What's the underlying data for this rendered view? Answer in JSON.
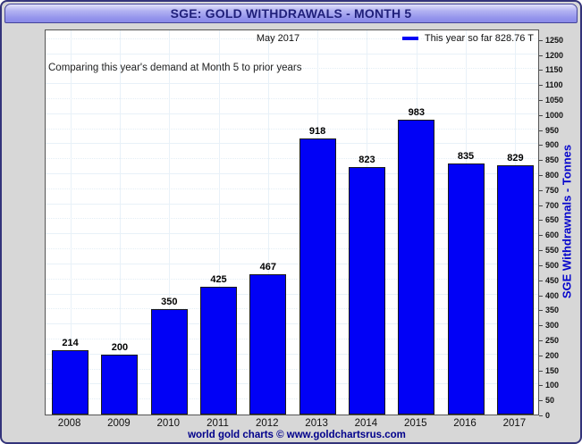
{
  "window": {
    "title": "SGE: GOLD WITHDRAWALS - MONTH 5",
    "footer": "world gold charts © www.goldchartsrus.com"
  },
  "chart": {
    "period_label": "May 2017",
    "annotation": "Comparing this year's demand at Month 5 to prior years",
    "legend_label": "This year so far 828.76 T",
    "y_axis_title": "SGE Withdrawnals - Tonnes"
  },
  "colors": {
    "bar_fill": "#0101f6",
    "bar_border": "#1a1a1a",
    "legend_swatch": "#0101f6",
    "axis_title": "#0404cc",
    "footer_text": "#00008b",
    "title_text": "#20207a",
    "title_bar_top": "#b3b3f2",
    "title_bar_bottom": "#8a8ae8",
    "window_bg": "#d7d7d7",
    "window_border": "#33337a"
  },
  "chart_data": {
    "type": "bar",
    "title": "SGE: GOLD WITHDRAWALS - MONTH 5",
    "categories": [
      "2008",
      "2009",
      "2010",
      "2011",
      "2012",
      "2013",
      "2014",
      "2015",
      "2016",
      "2017"
    ],
    "values": [
      214,
      200,
      350,
      425,
      467,
      918,
      823,
      983,
      835,
      829
    ],
    "xlabel": "",
    "ylabel": "SGE Withdrawnals - Tonnes",
    "ylim": [
      0,
      1250
    ],
    "ytick_step": 50,
    "grid": true,
    "legend_position": "top-right",
    "legend": [
      "This year so far 828.76 T"
    ],
    "annotations": [
      "May 2017",
      "Comparing this year's demand at Month 5 to prior years"
    ],
    "bar_value_labels": true
  }
}
